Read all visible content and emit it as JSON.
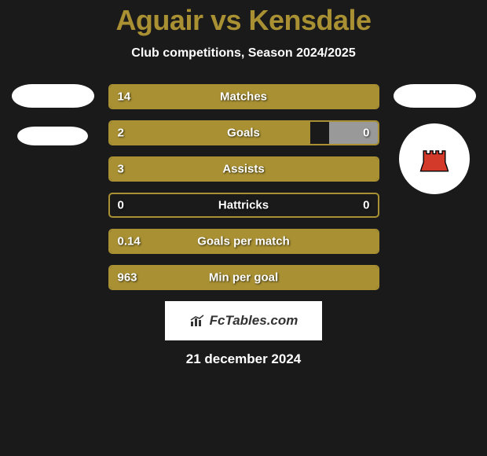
{
  "title": "Aguair vs Kensdale",
  "subtitle": "Club competitions, Season 2024/2025",
  "logo_text": "FcTables.com",
  "date": "21 december 2024",
  "colors": {
    "accent": "#a89033",
    "background": "#1a1a1a",
    "text": "#ffffff",
    "grey_fill": "#999999",
    "logo_bg": "#ffffff",
    "border_radius": 5
  },
  "stats": [
    {
      "label": "Matches",
      "left_value": "14",
      "right_value": "",
      "left_fill_pct": 100,
      "right_fill_pct": 0
    },
    {
      "label": "Goals",
      "left_value": "2",
      "right_value": "0",
      "left_fill_pct": 75,
      "right_fill_pct": 18
    },
    {
      "label": "Assists",
      "left_value": "3",
      "right_value": "",
      "left_fill_pct": 100,
      "right_fill_pct": 0
    },
    {
      "label": "Hattricks",
      "left_value": "0",
      "right_value": "0",
      "left_fill_pct": 0,
      "right_fill_pct": 0
    },
    {
      "label": "Goals per match",
      "left_value": "0.14",
      "right_value": "",
      "left_fill_pct": 100,
      "right_fill_pct": 0
    },
    {
      "label": "Min per goal",
      "left_value": "963",
      "right_value": "",
      "left_fill_pct": 100,
      "right_fill_pct": 0
    }
  ]
}
